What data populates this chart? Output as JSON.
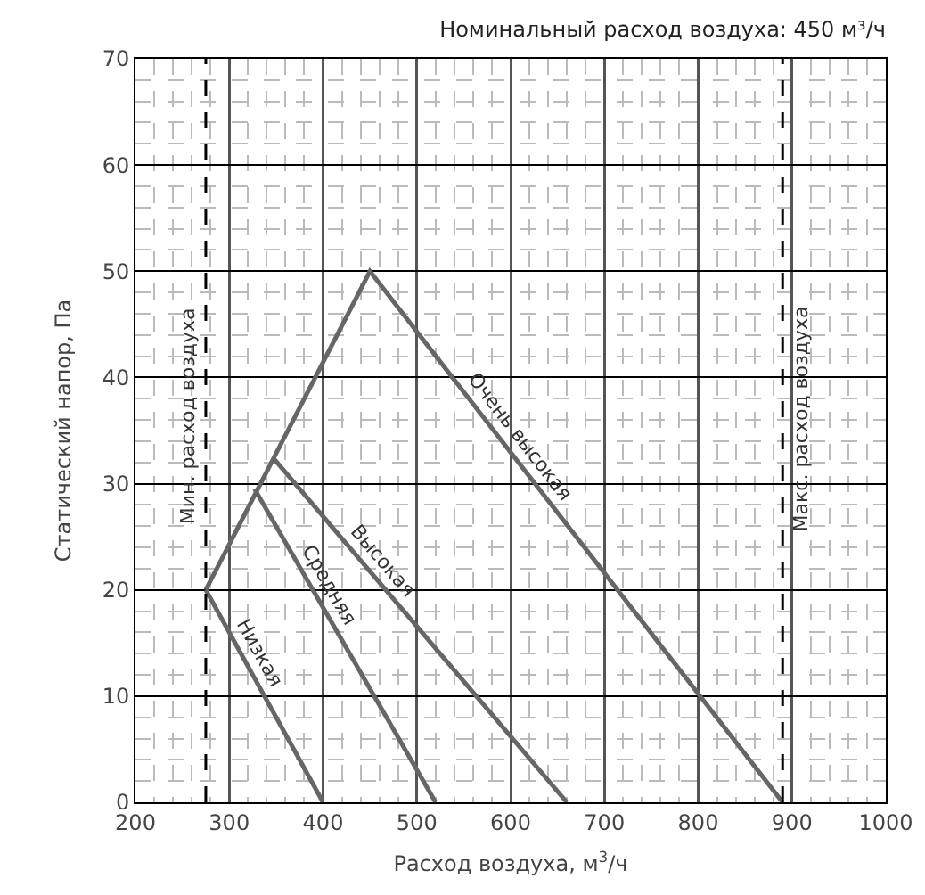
{
  "chart_data": {
    "type": "line",
    "title": "Номинальный расход воздуха: 450 м³/ч",
    "xlabel": "Расход воздуха, м$^{3}$/ч",
    "ylabel": "Статический напор, Па",
    "xlim": [
      200,
      1000
    ],
    "xticks": [
      200,
      300,
      400,
      500,
      600,
      700,
      800,
      900,
      1000
    ],
    "ylim": [
      0,
      70
    ],
    "yticks": [
      0,
      10,
      20,
      30,
      40,
      50,
      60,
      70
    ],
    "grid": true,
    "legend": false,
    "series": [
      {
        "name": "Низкая",
        "color": "#666666",
        "x": [
          275,
          400
        ],
        "values": [
          20,
          0
        ]
      },
      {
        "name": "Средняя",
        "color": "#666666",
        "x": [
          327,
          520
        ],
        "values": [
          29.5,
          0
        ]
      },
      {
        "name": "Высокая",
        "color": "#666666",
        "x": [
          347,
          660
        ],
        "values": [
          32.4,
          0
        ]
      },
      {
        "name": "Очень высокая",
        "color": "#666666",
        "x": [
          275,
          450,
          890
        ],
        "values": [
          20,
          50,
          0
        ]
      }
    ],
    "ref_lines": [
      {
        "axis": "x",
        "value": 275,
        "label": "Мин. расход воздуха",
        "color": "#000000",
        "line_style": "dashed"
      },
      {
        "axis": "x",
        "value": 890,
        "label": "Макс. расход воздуха",
        "color": "#000000",
        "line_style": "dashed"
      }
    ]
  }
}
